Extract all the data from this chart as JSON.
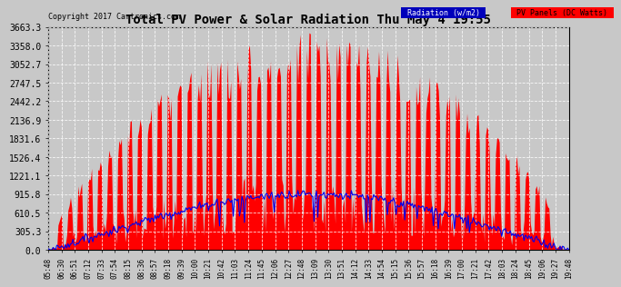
{
  "title": "Total PV Power & Solar Radiation Thu May 4 19:55",
  "copyright": "Copyright 2017 Cartronics.com",
  "legend_radiation": "Radiation (w/m2)",
  "legend_pv": "PV Panels (DC Watts)",
  "ymax": 3663.3,
  "yticks": [
    0.0,
    305.3,
    610.5,
    915.8,
    1221.1,
    1526.4,
    1831.6,
    2136.9,
    2442.2,
    2747.5,
    3052.7,
    3358.0,
    3663.3
  ],
  "background_color": "#c8c8c8",
  "plot_bg": "#c8c8c8",
  "red_color": "#ff0000",
  "blue_color": "#0000ee",
  "n_points": 420,
  "time_labels": [
    "05:48",
    "06:30",
    "06:51",
    "07:12",
    "07:33",
    "07:54",
    "08:15",
    "08:36",
    "08:57",
    "09:18",
    "09:39",
    "10:00",
    "10:21",
    "10:42",
    "11:03",
    "11:24",
    "11:45",
    "12:06",
    "12:27",
    "12:48",
    "13:09",
    "13:30",
    "13:51",
    "14:12",
    "14:33",
    "14:54",
    "15:15",
    "15:36",
    "15:57",
    "16:18",
    "16:39",
    "17:00",
    "17:21",
    "17:42",
    "18:03",
    "18:24",
    "18:45",
    "19:06",
    "19:27",
    "19:48"
  ]
}
